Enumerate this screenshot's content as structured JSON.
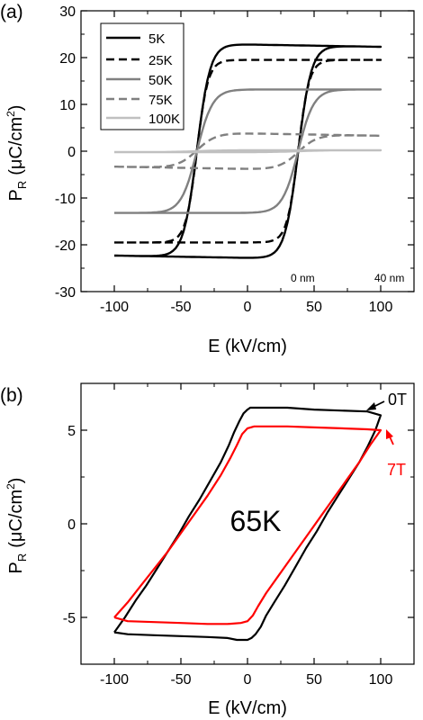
{
  "chart_data": [
    {
      "panel": "(a)",
      "type": "line",
      "xlabel": "E (kV/cm)",
      "ylabel": "P_R (μC/cm²)",
      "xlim": [
        -125,
        125
      ],
      "ylim": [
        -30,
        30
      ],
      "xticks": [
        "-100",
        "-50",
        "0",
        "50",
        "100"
      ],
      "yticks": [
        "-30",
        "-20",
        "-10",
        "0",
        "10",
        "20",
        "30"
      ],
      "annotations": [
        "0 nm",
        "40 nm"
      ],
      "legend_position": "top-left",
      "series": [
        {
          "name": "5K",
          "color": "#000000",
          "dash": "solid",
          "x": [
            -100,
            100
          ],
          "Pr": 22.8,
          "Ec": 38,
          "k": 0.1,
          "edge": -0.5
        },
        {
          "name": "25K",
          "color": "#000000",
          "dash": "dashed",
          "x": [
            -100,
            100
          ],
          "Pr": 19.5,
          "Ec": 38,
          "k": 0.12,
          "edge": 0
        },
        {
          "name": "50K",
          "color": "#808080",
          "dash": "solid",
          "x": [
            -100,
            100
          ],
          "Pr": 13.2,
          "Ec": 38,
          "k": 0.085,
          "edge": 0
        },
        {
          "name": "75K",
          "color": "#808080",
          "dash": "dashed",
          "x": [
            -100,
            100
          ],
          "Pr": 3.8,
          "Ec": 38,
          "k": 0.07,
          "edge": -0.5
        },
        {
          "name": "100K",
          "color": "#c0c0c0",
          "dash": "solid",
          "x": [
            -100,
            100
          ],
          "Pr": 0.2,
          "Ec": 38,
          "k": 0.05,
          "edge": 0
        }
      ]
    },
    {
      "panel": "(b)",
      "type": "line",
      "title_text": "65K",
      "xlabel": "E (kV/cm)",
      "ylabel": "P_R (μC/cm²)",
      "xlim": [
        -125,
        125
      ],
      "ylim": [
        -7.5,
        7.5
      ],
      "xticks": [
        "-100",
        "-50",
        "0",
        "50",
        "100"
      ],
      "yticks": [
        "-5",
        "0",
        "5"
      ],
      "series": [
        {
          "name": "0T",
          "color": "#000000",
          "x": [
            -100,
            -92,
            -84,
            -76,
            -68,
            -60,
            -52,
            -44,
            -36,
            -28,
            -20,
            -14,
            -10,
            -6,
            -3,
            0,
            2,
            5,
            8,
            15,
            30,
            50,
            70,
            90,
            100,
            96,
            90,
            84,
            76,
            68,
            60,
            52,
            44,
            36,
            28,
            20,
            14,
            10,
            6,
            3,
            0,
            -2,
            -5,
            -8,
            -15,
            -30,
            -50,
            -70,
            -90,
            -100
          ],
          "y": [
            -5.8,
            -5.0,
            -4.1,
            -3.3,
            -2.4,
            -1.5,
            -0.6,
            0.4,
            1.3,
            2.3,
            3.3,
            4.2,
            4.9,
            5.5,
            5.9,
            6.1,
            6.2,
            6.2,
            6.2,
            6.2,
            6.2,
            6.1,
            6.05,
            6.0,
            5.8,
            5.0,
            4.1,
            3.3,
            2.4,
            1.5,
            0.6,
            -0.4,
            -1.3,
            -2.3,
            -3.3,
            -4.2,
            -4.9,
            -5.5,
            -5.9,
            -6.1,
            -6.2,
            -6.2,
            -6.2,
            -6.2,
            -6.1,
            -6.05,
            -6.0,
            -5.95,
            -5.9,
            -5.8
          ]
        },
        {
          "name": "7T",
          "color": "#ff0000",
          "x": [
            -100,
            -90,
            -80,
            -70,
            -60,
            -50,
            -40,
            -30,
            -20,
            -13,
            -8,
            -4,
            0,
            5,
            15,
            30,
            50,
            70,
            90,
            100,
            92,
            84,
            74,
            64,
            54,
            44,
            34,
            24,
            14,
            8,
            4,
            0,
            -5,
            -15,
            -30,
            -50,
            -70,
            -90,
            -100
          ],
          "y": [
            -5.0,
            -4.2,
            -3.3,
            -2.4,
            -1.5,
            -0.5,
            0.5,
            1.5,
            2.6,
            3.5,
            4.2,
            4.8,
            5.1,
            5.2,
            5.2,
            5.2,
            5.15,
            5.1,
            5.05,
            5.0,
            4.2,
            3.3,
            2.3,
            1.3,
            0.3,
            -0.7,
            -1.7,
            -2.7,
            -3.7,
            -4.4,
            -4.9,
            -5.2,
            -5.3,
            -5.35,
            -5.35,
            -5.3,
            -5.25,
            -5.2,
            -5.0
          ]
        }
      ],
      "annotations": [
        {
          "text": "0T",
          "color": "#000000"
        },
        {
          "text": "7T",
          "color": "#ff0000"
        }
      ]
    }
  ]
}
